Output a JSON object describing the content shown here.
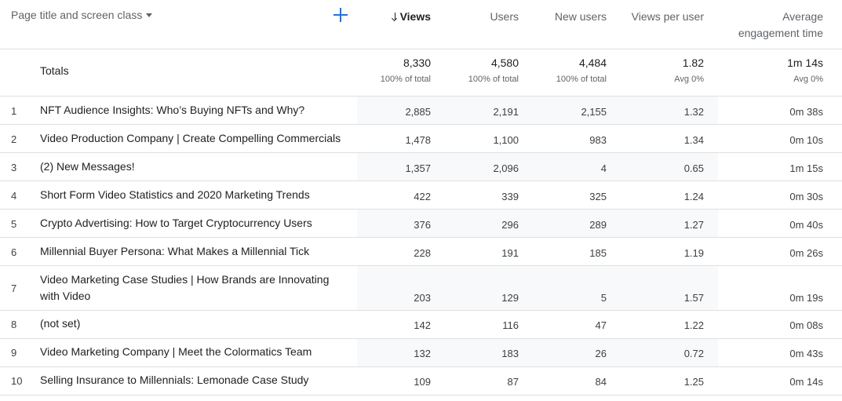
{
  "header": {
    "dimension_label": "Page title and screen class",
    "add_icon": "plus-icon",
    "columns": {
      "views": "Views",
      "users": "Users",
      "new_users": "New users",
      "views_per_user": "Views per user",
      "avg_engagement_line1": "Average",
      "avg_engagement_line2": "engagement time"
    }
  },
  "totals": {
    "label": "Totals",
    "views": "8,330",
    "views_sub": "100% of total",
    "users": "4,580",
    "users_sub": "100% of total",
    "new_users": "4,484",
    "new_users_sub": "100% of total",
    "views_per_user": "1.82",
    "views_per_user_sub": "Avg 0%",
    "avg_engagement": "1m 14s",
    "avg_engagement_sub": "Avg 0%"
  },
  "rows": [
    {
      "idx": "1",
      "title": "NFT Audience Insights: Who’s Buying NFTs and Why?",
      "views": "2,885",
      "users": "2,191",
      "new_users": "2,155",
      "vpu": "1.32",
      "eng": "0m 38s"
    },
    {
      "idx": "2",
      "title": "Video Production Company | Create Compelling Commercials",
      "views": "1,478",
      "users": "1,100",
      "new_users": "983",
      "vpu": "1.34",
      "eng": "0m 10s"
    },
    {
      "idx": "3",
      "title": "(2) New Messages!",
      "views": "1,357",
      "users": "2,096",
      "new_users": "4",
      "vpu": "0.65",
      "eng": "1m 15s"
    },
    {
      "idx": "4",
      "title": "Short Form Video Statistics and 2020 Marketing Trends",
      "views": "422",
      "users": "339",
      "new_users": "325",
      "vpu": "1.24",
      "eng": "0m 30s"
    },
    {
      "idx": "5",
      "title": "Crypto Advertising: How to Target Cryptocurrency Users",
      "views": "376",
      "users": "296",
      "new_users": "289",
      "vpu": "1.27",
      "eng": "0m 40s"
    },
    {
      "idx": "6",
      "title": "Millennial Buyer Persona: What Makes a Millennial Tick",
      "views": "228",
      "users": "191",
      "new_users": "185",
      "vpu": "1.19",
      "eng": "0m 26s"
    },
    {
      "idx": "7",
      "title": "Video Marketing Case Studies | How Brands are Innovating with Video",
      "views": "203",
      "users": "129",
      "new_users": "5",
      "vpu": "1.57",
      "eng": "0m 19s"
    },
    {
      "idx": "8",
      "title": "(not set)",
      "views": "142",
      "users": "116",
      "new_users": "47",
      "vpu": "1.22",
      "eng": "0m 08s"
    },
    {
      "idx": "9",
      "title": "Video Marketing Company | Meet the Colormatics Team",
      "views": "132",
      "users": "183",
      "new_users": "26",
      "vpu": "0.72",
      "eng": "0m 43s"
    },
    {
      "idx": "10",
      "title": "Selling Insurance to Millennials: Lemonade Case Study",
      "views": "109",
      "users": "87",
      "new_users": "84",
      "vpu": "1.25",
      "eng": "0m 14s"
    }
  ]
}
